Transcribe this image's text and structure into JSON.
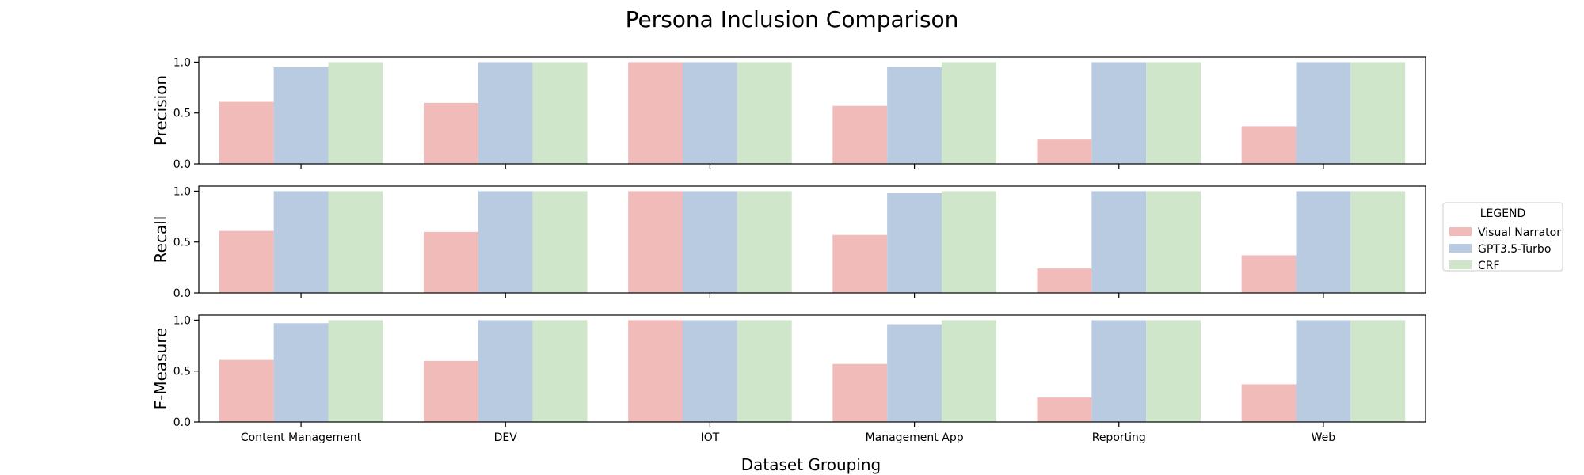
{
  "chart_data": {
    "type": "bar",
    "title": "Persona Inclusion Comparison",
    "xlabel": "Dataset Grouping",
    "categories": [
      "Content Management",
      "DEV",
      "IOT",
      "Management App",
      "Reporting",
      "Web"
    ],
    "legend": {
      "title": "LEGEND",
      "position": "right",
      "entries": [
        "Visual Narrator",
        "GPT3.5-Turbo",
        "CRF"
      ]
    },
    "series_colors": [
      "#f1bbba",
      "#b8cbe0",
      "#cfe6ca"
    ],
    "grid": false,
    "panels": [
      {
        "ylabel": "Precision",
        "ylim": [
          0,
          1.05
        ],
        "yticks": [
          "0.0",
          "0.5",
          "1.0"
        ],
        "series": [
          {
            "name": "Visual Narrator",
            "values": [
              0.61,
              0.6,
              1.0,
              0.57,
              0.24,
              0.37
            ]
          },
          {
            "name": "GPT3.5-Turbo",
            "values": [
              0.95,
              1.0,
              1.0,
              0.95,
              1.0,
              1.0
            ]
          },
          {
            "name": "CRF",
            "values": [
              1.0,
              1.0,
              1.0,
              1.0,
              1.0,
              1.0
            ]
          }
        ]
      },
      {
        "ylabel": "Recall",
        "ylim": [
          0,
          1.05
        ],
        "yticks": [
          "0.0",
          "0.5",
          "1.0"
        ],
        "series": [
          {
            "name": "Visual Narrator",
            "values": [
              0.61,
              0.6,
              1.0,
              0.57,
              0.24,
              0.37
            ]
          },
          {
            "name": "GPT3.5-Turbo",
            "values": [
              1.0,
              1.0,
              1.0,
              0.98,
              1.0,
              1.0
            ]
          },
          {
            "name": "CRF",
            "values": [
              1.0,
              1.0,
              1.0,
              1.0,
              1.0,
              1.0
            ]
          }
        ]
      },
      {
        "ylabel": "F-Measure",
        "ylim": [
          0,
          1.05
        ],
        "yticks": [
          "0.0",
          "0.5",
          "1.0"
        ],
        "series": [
          {
            "name": "Visual Narrator",
            "values": [
              0.61,
              0.6,
              1.0,
              0.57,
              0.24,
              0.37
            ]
          },
          {
            "name": "GPT3.5-Turbo",
            "values": [
              0.97,
              1.0,
              1.0,
              0.96,
              1.0,
              1.0
            ]
          },
          {
            "name": "CRF",
            "values": [
              1.0,
              1.0,
              1.0,
              1.0,
              1.0,
              1.0
            ]
          }
        ]
      }
    ]
  }
}
